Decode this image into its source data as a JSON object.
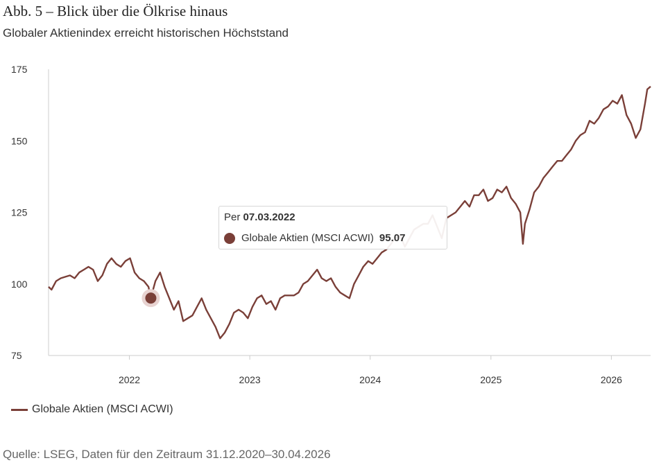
{
  "header": {
    "title": "Abb. 5 – Blick über die Ölkrise hinaus",
    "subtitle": "Globaler Aktienindex erreicht historischen Höchststand"
  },
  "footer": {
    "source": "Quelle: LSEG, Daten für den Zeitraum 31.12.2020–30.04.2026"
  },
  "tooltip": {
    "prefix": "Per",
    "date": "07.03.2022",
    "series_name": "Globale Aktien (MSCI ACWI)",
    "value": "95.07"
  },
  "colors": {
    "series": "#7a3f38",
    "axis": "#cccccc",
    "highlight_halo": "#e8d3d1"
  },
  "chart_data": {
    "type": "line",
    "title": "Abb. 5 – Blick über die Ölkrise hinaus",
    "subtitle": "Globaler Aktienindex erreicht historischen Höchststand",
    "xlabel": "",
    "ylabel": "",
    "ylim": [
      75,
      175
    ],
    "y_ticks": [
      "75",
      "100",
      "125",
      "150",
      "175"
    ],
    "xlim": [
      "2021-05-01",
      "2026-04-30"
    ],
    "x_ticks": [
      {
        "date": "2022-01-01",
        "label": "2022"
      },
      {
        "date": "2023-01-01",
        "label": "2023"
      },
      {
        "date": "2024-01-01",
        "label": "2024"
      },
      {
        "date": "2025-01-01",
        "label": "2025"
      },
      {
        "date": "2026-01-01",
        "label": "2026"
      }
    ],
    "grid": false,
    "legend": "bottom-left",
    "highlight": {
      "date": "2022-03-07",
      "value": 95.07
    },
    "series": [
      {
        "name": "Globale Aktien (MSCI ACWI)",
        "color": "#7a3f38",
        "points": [
          [
            "2021-05-01",
            99
          ],
          [
            "2021-05-10",
            98
          ],
          [
            "2021-05-24",
            101
          ],
          [
            "2021-06-07",
            102
          ],
          [
            "2021-06-21",
            102.5
          ],
          [
            "2021-07-05",
            103
          ],
          [
            "2021-07-19",
            102
          ],
          [
            "2021-08-02",
            104
          ],
          [
            "2021-08-16",
            105
          ],
          [
            "2021-08-30",
            106
          ],
          [
            "2021-09-13",
            105
          ],
          [
            "2021-09-27",
            101
          ],
          [
            "2021-10-11",
            103
          ],
          [
            "2021-10-25",
            107
          ],
          [
            "2021-11-08",
            109
          ],
          [
            "2021-11-22",
            107
          ],
          [
            "2021-12-06",
            106
          ],
          [
            "2021-12-20",
            108
          ],
          [
            "2022-01-03",
            109
          ],
          [
            "2022-01-17",
            104
          ],
          [
            "2022-01-31",
            102
          ],
          [
            "2022-02-14",
            101
          ],
          [
            "2022-02-28",
            99
          ],
          [
            "2022-03-07",
            95.07
          ],
          [
            "2022-03-21",
            101
          ],
          [
            "2022-04-04",
            104
          ],
          [
            "2022-04-18",
            99
          ],
          [
            "2022-05-02",
            95
          ],
          [
            "2022-05-16",
            91
          ],
          [
            "2022-05-30",
            94
          ],
          [
            "2022-06-13",
            87
          ],
          [
            "2022-06-27",
            88
          ],
          [
            "2022-07-11",
            89
          ],
          [
            "2022-07-25",
            92
          ],
          [
            "2022-08-08",
            95
          ],
          [
            "2022-08-22",
            91
          ],
          [
            "2022-09-05",
            88
          ],
          [
            "2022-09-19",
            85
          ],
          [
            "2022-10-03",
            81
          ],
          [
            "2022-10-17",
            83
          ],
          [
            "2022-10-31",
            86
          ],
          [
            "2022-11-14",
            90
          ],
          [
            "2022-11-28",
            91
          ],
          [
            "2022-12-12",
            90
          ],
          [
            "2022-12-26",
            88
          ],
          [
            "2023-01-09",
            92
          ],
          [
            "2023-01-23",
            95
          ],
          [
            "2023-02-06",
            96
          ],
          [
            "2023-02-20",
            93
          ],
          [
            "2023-03-06",
            94
          ],
          [
            "2023-03-20",
            91
          ],
          [
            "2023-04-03",
            95
          ],
          [
            "2023-04-17",
            96
          ],
          [
            "2023-05-01",
            96
          ],
          [
            "2023-05-15",
            96
          ],
          [
            "2023-05-29",
            97
          ],
          [
            "2023-06-12",
            100
          ],
          [
            "2023-06-26",
            101
          ],
          [
            "2023-07-10",
            103
          ],
          [
            "2023-07-24",
            105
          ],
          [
            "2023-08-07",
            102
          ],
          [
            "2023-08-21",
            101
          ],
          [
            "2023-09-04",
            102
          ],
          [
            "2023-09-18",
            99
          ],
          [
            "2023-10-02",
            97
          ],
          [
            "2023-10-16",
            96
          ],
          [
            "2023-10-30",
            95
          ],
          [
            "2023-11-13",
            100
          ],
          [
            "2023-11-27",
            103
          ],
          [
            "2023-12-11",
            106
          ],
          [
            "2023-12-26",
            108
          ],
          [
            "2024-01-08",
            107
          ],
          [
            "2024-01-22",
            109
          ],
          [
            "2024-02-05",
            111
          ],
          [
            "2024-02-19",
            112
          ],
          [
            "2024-03-04",
            114
          ],
          [
            "2024-03-18",
            116
          ],
          [
            "2024-04-01",
            117
          ],
          [
            "2024-04-15",
            113
          ],
          [
            "2024-04-29",
            116
          ],
          [
            "2024-05-13",
            119
          ],
          [
            "2024-05-27",
            120
          ],
          [
            "2024-06-10",
            121
          ],
          [
            "2024-06-24",
            121
          ],
          [
            "2024-07-08",
            124
          ],
          [
            "2024-07-22",
            120
          ],
          [
            "2024-08-05",
            116
          ],
          [
            "2024-08-19",
            123
          ],
          [
            "2024-09-02",
            124
          ],
          [
            "2024-09-16",
            125
          ],
          [
            "2024-09-30",
            127
          ],
          [
            "2024-10-14",
            129
          ],
          [
            "2024-10-28",
            127
          ],
          [
            "2024-11-11",
            131
          ],
          [
            "2024-11-25",
            131
          ],
          [
            "2024-12-09",
            133
          ],
          [
            "2024-12-23",
            129
          ],
          [
            "2025-01-06",
            130
          ],
          [
            "2025-01-20",
            133
          ],
          [
            "2025-02-03",
            132
          ],
          [
            "2025-02-17",
            134
          ],
          [
            "2025-03-03",
            130
          ],
          [
            "2025-03-17",
            128
          ],
          [
            "2025-03-31",
            125
          ],
          [
            "2025-04-08",
            114
          ],
          [
            "2025-04-14",
            121
          ],
          [
            "2025-04-28",
            126
          ],
          [
            "2025-05-12",
            132
          ],
          [
            "2025-05-26",
            134
          ],
          [
            "2025-06-09",
            137
          ],
          [
            "2025-06-23",
            139
          ],
          [
            "2025-07-07",
            141
          ],
          [
            "2025-07-21",
            143
          ],
          [
            "2025-08-04",
            143
          ],
          [
            "2025-08-18",
            145
          ],
          [
            "2025-09-01",
            147
          ],
          [
            "2025-09-15",
            150
          ],
          [
            "2025-09-29",
            152
          ],
          [
            "2025-10-13",
            153
          ],
          [
            "2025-10-27",
            157
          ],
          [
            "2025-11-10",
            156
          ],
          [
            "2025-11-24",
            158
          ],
          [
            "2025-12-08",
            161
          ],
          [
            "2025-12-22",
            162
          ],
          [
            "2026-01-05",
            164
          ],
          [
            "2026-01-19",
            163
          ],
          [
            "2026-02-02",
            166
          ],
          [
            "2026-02-16",
            159
          ],
          [
            "2026-03-02",
            156
          ],
          [
            "2026-03-16",
            151
          ],
          [
            "2026-03-30",
            154
          ],
          [
            "2026-04-13",
            163
          ],
          [
            "2026-04-20",
            168
          ],
          [
            "2026-04-30",
            169
          ]
        ]
      }
    ]
  }
}
